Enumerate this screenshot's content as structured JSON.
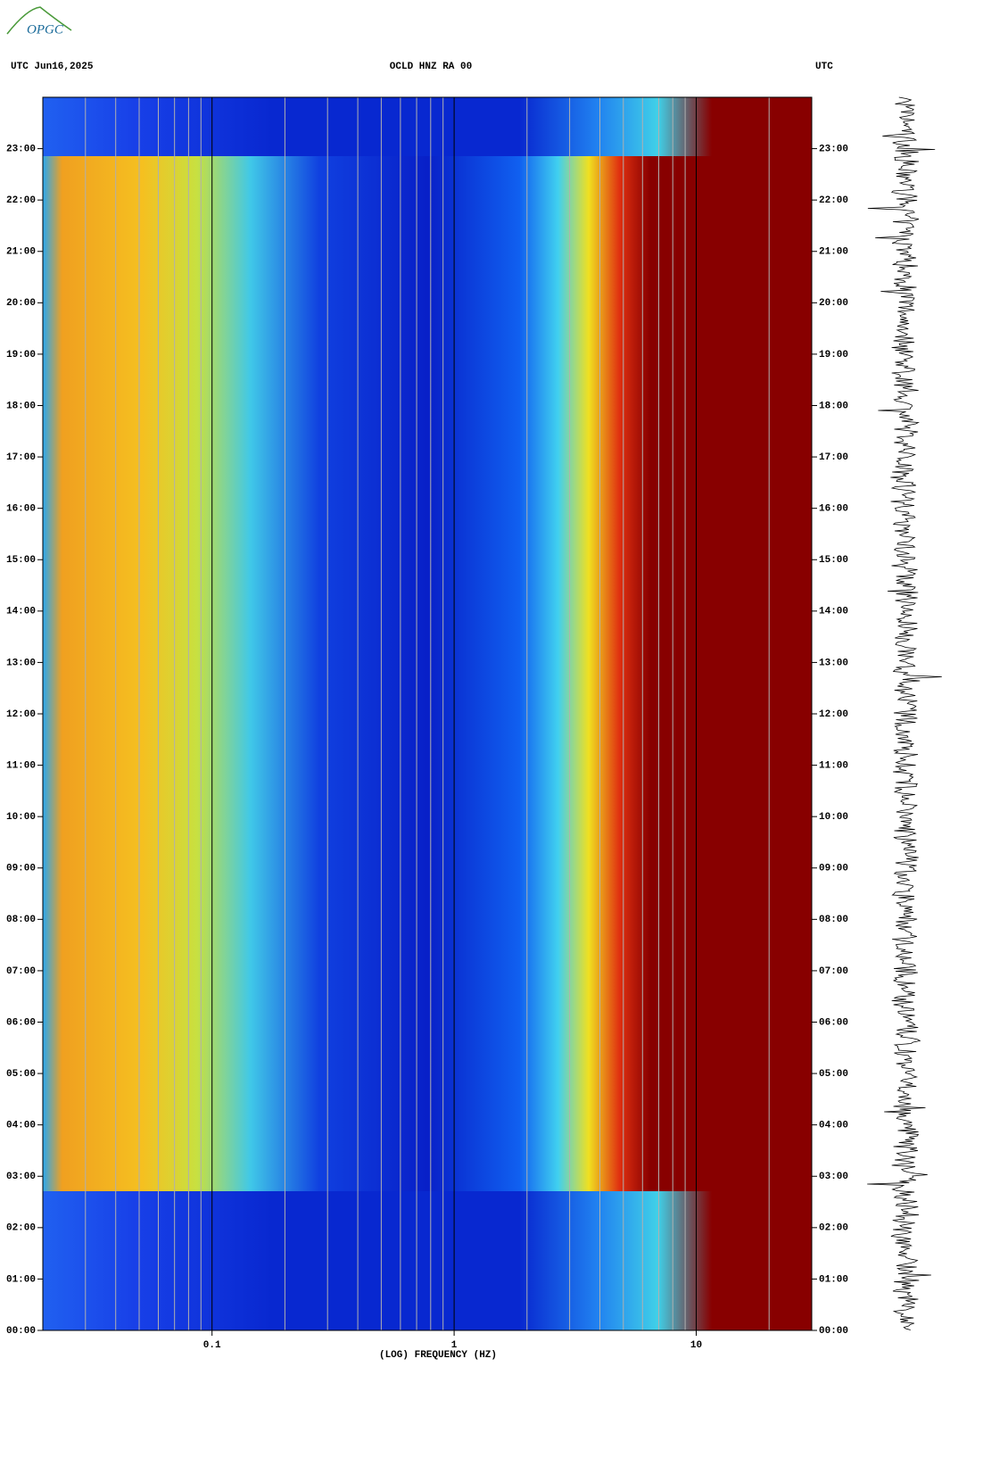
{
  "logo": "OPGC",
  "chart_data": {
    "type": "spectrogram",
    "header_left": "UTC  Jun16,2025",
    "title": "OCLD HNZ RA 00",
    "header_right": "UTC",
    "x_label": "(LOG) FREQUENCY (HZ)",
    "x_log": true,
    "xlim": [
      0.02,
      30
    ],
    "xticks": [
      0.1,
      1,
      10
    ],
    "x_minor_grid": [
      0.03,
      0.04,
      0.05,
      0.06,
      0.07,
      0.08,
      0.09,
      0.2,
      0.3,
      0.4,
      0.5,
      0.6,
      0.7,
      0.8,
      0.9,
      2,
      3,
      4,
      5,
      6,
      7,
      8,
      9,
      20
    ],
    "ylim": [
      0,
      24
    ],
    "yticks": [
      {
        "value": 0,
        "label": "00:00"
      },
      {
        "value": 1,
        "label": "01:00"
      },
      {
        "value": 2,
        "label": "02:00"
      },
      {
        "value": 3,
        "label": "03:00"
      },
      {
        "value": 4,
        "label": "04:00"
      },
      {
        "value": 5,
        "label": "05:00"
      },
      {
        "value": 6,
        "label": "06:00"
      },
      {
        "value": 7,
        "label": "07:00"
      },
      {
        "value": 8,
        "label": "08:00"
      },
      {
        "value": 9,
        "label": "09:00"
      },
      {
        "value": 10,
        "label": "10:00"
      },
      {
        "value": 11,
        "label": "11:00"
      },
      {
        "value": 12,
        "label": "12:00"
      },
      {
        "value": 13,
        "label": "13:00"
      },
      {
        "value": 14,
        "label": "14:00"
      },
      {
        "value": 15,
        "label": "15:00"
      },
      {
        "value": 16,
        "label": "16:00"
      },
      {
        "value": 17,
        "label": "17:00"
      },
      {
        "value": 18,
        "label": "18:00"
      },
      {
        "value": 19,
        "label": "19:00"
      },
      {
        "value": 20,
        "label": "20:00"
      },
      {
        "value": 21,
        "label": "21:00"
      },
      {
        "value": 22,
        "label": "22:00"
      },
      {
        "value": 23,
        "label": "23:00"
      }
    ]
  }
}
